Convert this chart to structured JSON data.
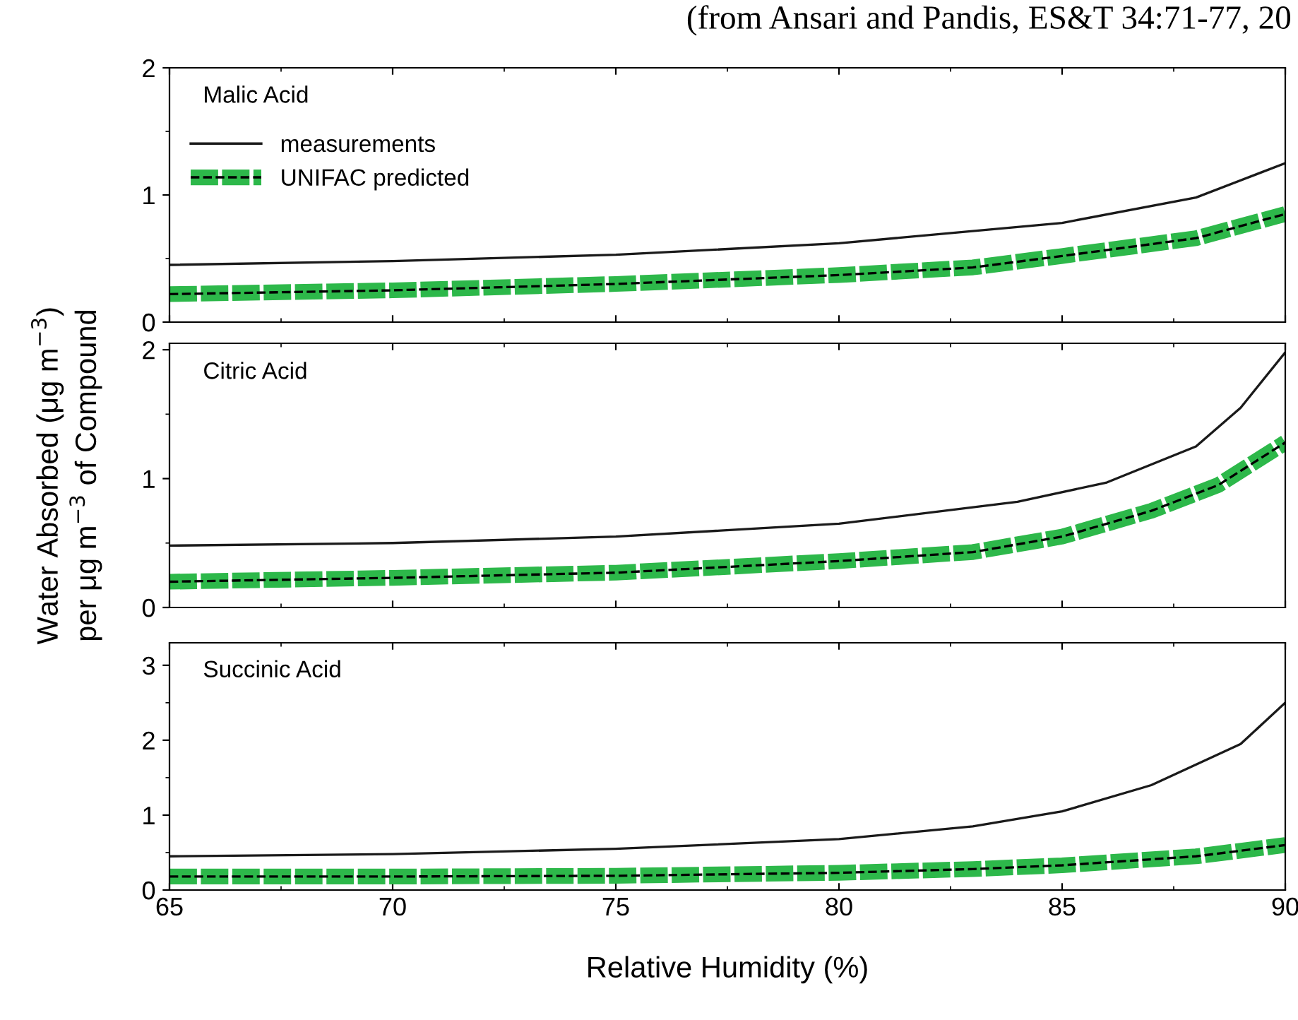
{
  "chart_data": [
    {
      "type": "line",
      "title": "Malic Acid",
      "annotations": [
        "(from Ansari and Pandis, ES&T 34:71-77, 20"
      ],
      "xlim": [
        65,
        90
      ],
      "xticks": [
        65,
        70,
        75,
        80,
        85,
        90
      ],
      "ylim": [
        0,
        2
      ],
      "yticks": [
        0,
        1,
        2
      ],
      "tick_labels": "y",
      "legend": "top left",
      "grid": false,
      "series": [
        {
          "name": "measurements",
          "color": "#1a1a1a",
          "line_style": "solid",
          "x": [
            65,
            70,
            75,
            80,
            85,
            88,
            90
          ],
          "values": [
            0.45,
            0.48,
            0.53,
            0.62,
            0.78,
            0.98,
            1.25
          ]
        },
        {
          "name": "UNIFAC predicted",
          "color": "#2db84a",
          "line_style": "dashed",
          "x": [
            65,
            70,
            75,
            80,
            83,
            85,
            88,
            90
          ],
          "values": [
            0.22,
            0.25,
            0.3,
            0.37,
            0.43,
            0.52,
            0.66,
            0.85
          ]
        }
      ]
    },
    {
      "type": "line",
      "title": "Citric Acid",
      "ylabel": "Water Absorbed (μg m$^{−3}$)\nper μg m$^{−3}$ of Compound",
      "xlim": [
        65,
        90
      ],
      "xticks": [
        65,
        70,
        75,
        80,
        85,
        90
      ],
      "ylim": [
        0,
        2.05
      ],
      "yticks": [
        0,
        1,
        2
      ],
      "tick_labels": "y",
      "grid": false,
      "series": [
        {
          "color": "#1a1a1a",
          "line_style": "solid",
          "x": [
            65,
            70,
            75,
            80,
            84,
            86,
            88,
            89,
            90
          ],
          "values": [
            0.48,
            0.5,
            0.55,
            0.65,
            0.82,
            0.97,
            1.25,
            1.55,
            1.98
          ]
        },
        {
          "color": "#2db84a",
          "line_style": "dashed",
          "x": [
            65,
            70,
            75,
            80,
            83,
            85,
            87,
            88.5,
            90
          ],
          "values": [
            0.2,
            0.23,
            0.27,
            0.36,
            0.43,
            0.55,
            0.75,
            0.95,
            1.28
          ]
        }
      ]
    },
    {
      "type": "line",
      "title": "Succinic Acid",
      "xlabel": "Relative Humidity (%)",
      "xlim": [
        65,
        90
      ],
      "xticks": [
        65,
        70,
        75,
        80,
        85,
        90
      ],
      "ylim": [
        0,
        3.3
      ],
      "yticks": [
        0,
        1,
        2,
        3
      ],
      "grid": false,
      "series": [
        {
          "color": "#1a1a1a",
          "line_style": "solid",
          "x": [
            65,
            70,
            75,
            80,
            83,
            85,
            87,
            89,
            90
          ],
          "values": [
            0.45,
            0.48,
            0.55,
            0.68,
            0.85,
            1.05,
            1.4,
            1.95,
            2.5
          ]
        },
        {
          "color": "#2db84a",
          "line_style": "dashed",
          "x": [
            65,
            70,
            75,
            80,
            83,
            85,
            88,
            90
          ],
          "values": [
            0.18,
            0.18,
            0.19,
            0.23,
            0.28,
            0.33,
            0.45,
            0.6
          ]
        }
      ]
    }
  ]
}
